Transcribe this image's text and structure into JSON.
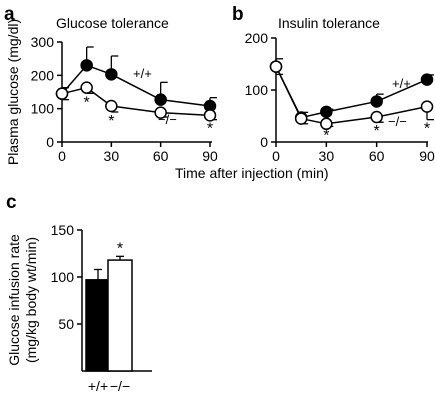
{
  "chart_data": [
    {
      "panel": "a",
      "type": "line",
      "title": "Glucose tolerance",
      "ylabel": "Plasma glucose (mg/dl)",
      "xlabel": "Time after injection (min)",
      "x": [
        0,
        15,
        30,
        60,
        90
      ],
      "xticks": [
        0,
        30,
        60,
        90
      ],
      "ylim": [
        0,
        300
      ],
      "yticks": [
        0,
        100,
        200,
        300
      ],
      "series": [
        {
          "name": "+/+",
          "marker": "filled",
          "values": [
            145,
            230,
            203,
            127,
            108
          ],
          "errors": [
            18,
            55,
            55,
            52,
            25
          ]
        },
        {
          "name": "−/−",
          "marker": "open",
          "values": [
            145,
            163,
            108,
            88,
            80
          ],
          "errors": [
            18,
            17,
            18,
            13,
            13
          ]
        }
      ],
      "significance": [
        {
          "series": "−/−",
          "x": 15,
          "label": "*"
        },
        {
          "series": "−/−",
          "x": 30,
          "label": "*"
        },
        {
          "series": "−/−",
          "x": 90,
          "label": "*"
        }
      ]
    },
    {
      "panel": "b",
      "type": "line",
      "title": "Insulin tolerance",
      "ylabel": "",
      "xlabel": "Time after injection (min)",
      "x": [
        0,
        15,
        30,
        60,
        90
      ],
      "xticks": [
        0,
        30,
        60,
        90
      ],
      "ylim": [
        0,
        200
      ],
      "yticks": [
        0,
        100,
        200
      ],
      "series": [
        {
          "name": "+/+",
          "marker": "filled",
          "values": [
            145,
            47,
            58,
            78,
            120
          ],
          "errors": [
            15,
            10,
            5,
            14,
            9
          ]
        },
        {
          "name": "−/−",
          "marker": "open",
          "values": [
            145,
            45,
            35,
            48,
            68
          ],
          "errors": [
            15,
            10,
            5,
            10,
            25
          ]
        }
      ],
      "significance": [
        {
          "series": "−/−",
          "x": 30,
          "label": "*"
        },
        {
          "series": "−/−",
          "x": 60,
          "label": "*"
        },
        {
          "series": "−/−",
          "x": 90,
          "label": "*"
        }
      ]
    },
    {
      "panel": "c",
      "type": "bar",
      "title": "",
      "ylabel": "Glucose infusion rate (mg/kg body wt/min)",
      "ylabel_lines": [
        "Glucose infusion rate",
        "(mg/kg body wt/min)"
      ],
      "xlabel": "",
      "categories": [
        "+/+",
        "−/−"
      ],
      "values": [
        97,
        118
      ],
      "errors": [
        11,
        4
      ],
      "fills": [
        "#000000",
        "#ffffff"
      ],
      "ylim": [
        0,
        150
      ],
      "yticks": [
        50,
        100,
        150
      ],
      "significance": [
        {
          "category": "−/−",
          "label": "*"
        }
      ]
    }
  ]
}
